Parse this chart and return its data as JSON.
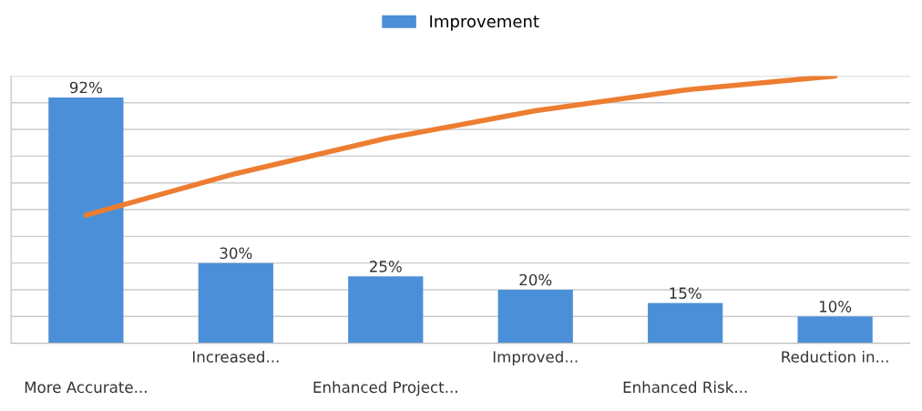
{
  "chart_data": {
    "type": "bar",
    "categories": [
      "More Accurate...",
      "Increased...",
      "Enhanced Project...",
      "Improved...",
      "Enhanced Risk...",
      "Reduction in..."
    ],
    "series": [
      {
        "name": "Improvement",
        "color": "#4a8fd8",
        "values": [
          92,
          30,
          25,
          20,
          15,
          10
        ],
        "value_labels": [
          "92%",
          "30%",
          "25%",
          "20%",
          "15%",
          "10%"
        ]
      },
      {
        "type": "line",
        "color": "#ed7d31",
        "values": [
          47.9,
          63.5,
          76.6,
          87,
          94.8,
          100
        ]
      }
    ],
    "ylim": [
      0,
      100
    ],
    "yticks": [
      {
        "value": 0,
        "label": null
      },
      {
        "value": 10,
        "label": null
      },
      {
        "value": 20,
        "label": null
      },
      {
        "value": 30,
        "label": null
      },
      {
        "value": 40,
        "label": null
      },
      {
        "value": 50,
        "label": null
      },
      {
        "value": 60,
        "label": null
      },
      {
        "value": 70,
        "label": null
      },
      {
        "value": 80,
        "label": null
      },
      {
        "value": 90,
        "label": null
      },
      {
        "value": 100,
        "label": null
      }
    ],
    "tick_labels": "x",
    "grid": "y",
    "legend": "top",
    "marker": "none",
    "line_style": "solid"
  }
}
